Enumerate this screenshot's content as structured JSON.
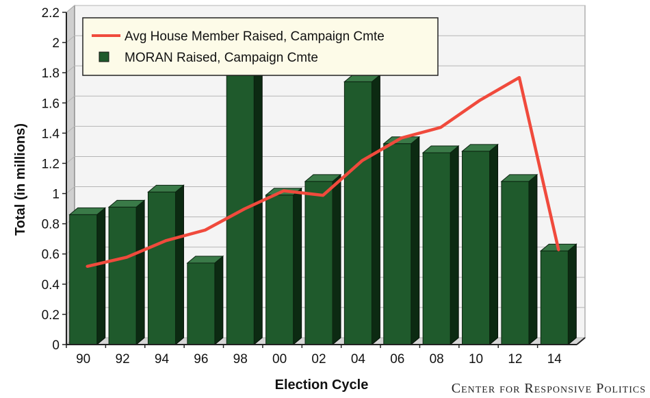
{
  "chart_data": {
    "type": "bar",
    "categories": [
      "90",
      "92",
      "94",
      "96",
      "98",
      "00",
      "02",
      "04",
      "06",
      "08",
      "10",
      "12",
      "14"
    ],
    "series": [
      {
        "name": "MORAN Raised, Campaign Cmte",
        "type": "bar",
        "color": "#1f5a2c",
        "values": [
          0.86,
          0.91,
          1.01,
          0.54,
          1.85,
          0.99,
          1.08,
          1.74,
          1.33,
          1.27,
          1.28,
          1.08,
          0.62
        ]
      },
      {
        "name": "Avg House Member Raised, Campaign Cmte",
        "type": "line",
        "color": "#f04a3c",
        "values": [
          0.5,
          0.56,
          0.67,
          0.74,
          0.88,
          1.0,
          0.97,
          1.2,
          1.35,
          1.42,
          1.6,
          1.75,
          0.61
        ]
      }
    ],
    "yticks": [
      "0",
      "0.2",
      "0.4",
      "0.6",
      "0.8",
      "1",
      "1.2",
      "1.4",
      "1.6",
      "1.8",
      "2",
      "2.2"
    ],
    "ylim": [
      0,
      2.2
    ],
    "xlabel": "Election Cycle",
    "ylabel": "Total (in millions)",
    "grid": true,
    "legend_position": "top-left"
  },
  "source": "Center for Responsive Politics"
}
